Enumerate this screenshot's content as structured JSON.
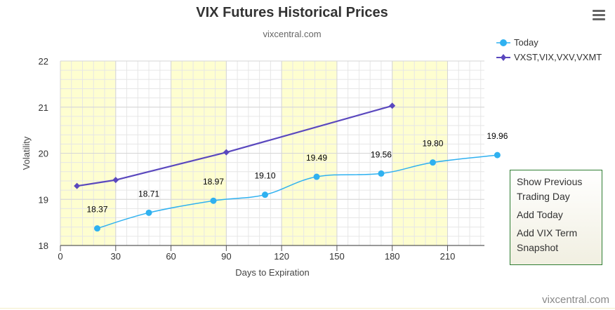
{
  "chart_data": {
    "type": "line",
    "title": "VIX Futures Historical Prices",
    "subtitle": "vixcentral.com",
    "xlabel": "Days to Expiration",
    "ylabel": "Volatility",
    "xlim": [
      0,
      230
    ],
    "ylim": [
      18,
      22
    ],
    "xticks": [
      0,
      30,
      60,
      90,
      120,
      150,
      180,
      210
    ],
    "yticks": [
      18,
      19,
      20,
      21,
      22
    ],
    "plot_bands": [
      [
        0,
        30
      ],
      [
        60,
        90
      ],
      [
        120,
        150
      ],
      [
        180,
        210
      ]
    ],
    "grid": true,
    "legend_position": "top-right",
    "series": [
      {
        "name": "Today",
        "color": "#2fb1f0",
        "marker": "circle",
        "smooth": true,
        "points": [
          {
            "x": 20,
            "y": 18.37
          },
          {
            "x": 48,
            "y": 18.71
          },
          {
            "x": 83,
            "y": 18.97
          },
          {
            "x": 111,
            "y": 19.1
          },
          {
            "x": 139,
            "y": 19.49
          },
          {
            "x": 174,
            "y": 19.56
          },
          {
            "x": 202,
            "y": 19.8
          },
          {
            "x": 237,
            "y": 19.96
          }
        ],
        "labels": [
          "18.37",
          "18.71",
          "18.97",
          "19.10",
          "19.49",
          "19.56",
          "19.80",
          "19.96"
        ]
      },
      {
        "name": "VXST,VIX,VXV,VXMT",
        "color": "#5a48be",
        "marker": "diamond",
        "smooth": false,
        "points": [
          {
            "x": 9,
            "y": 19.29
          },
          {
            "x": 30,
            "y": 19.42
          },
          {
            "x": 90,
            "y": 20.02
          },
          {
            "x": 180,
            "y": 21.03
          }
        ]
      }
    ]
  },
  "legend": {
    "items": [
      "Today",
      "VXST,VIX,VXV,VXMT"
    ]
  },
  "menu": {
    "icon": "hamburger-menu-icon",
    "items": [
      "Show Previous Trading Day",
      "Add Today",
      "Add VIX Term Snapshot"
    ]
  },
  "credits": "vixcentral.com"
}
